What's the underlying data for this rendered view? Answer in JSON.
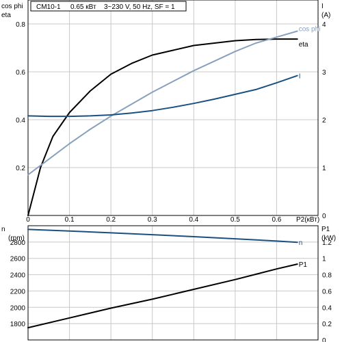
{
  "title_box": {
    "model": "CM10-1",
    "power": "0.65 кВт",
    "supply": "3~230 V, 50 Hz, SF = 1"
  },
  "chart_data": [
    {
      "type": "line",
      "x_label": "P2(кВт)",
      "x_range": [
        0,
        0.7
      ],
      "x_ticks": [
        0,
        0.1,
        0.2,
        0.3,
        0.4,
        0.5,
        0.6
      ],
      "left_axis": {
        "labels": [
          "cos phi",
          "eta"
        ],
        "range": [
          0,
          0.9
        ],
        "ticks": [
          0.2,
          0.4,
          0.6,
          0.8
        ]
      },
      "right_axis": {
        "labels": [
          "I",
          "(A)"
        ],
        "range": [
          0,
          4.5
        ],
        "ticks": [
          0,
          1,
          2,
          3,
          4
        ]
      },
      "grid": true,
      "series": [
        {
          "name": "eta",
          "axis": "left",
          "color": "#000000",
          "points": [
            [
              0,
              0
            ],
            [
              0.03,
              0.2
            ],
            [
              0.06,
              0.33
            ],
            [
              0.1,
              0.43
            ],
            [
              0.15,
              0.52
            ],
            [
              0.2,
              0.59
            ],
            [
              0.25,
              0.635
            ],
            [
              0.3,
              0.67
            ],
            [
              0.35,
              0.69
            ],
            [
              0.4,
              0.71
            ],
            [
              0.45,
              0.72
            ],
            [
              0.5,
              0.73
            ],
            [
              0.55,
              0.735
            ],
            [
              0.6,
              0.737
            ],
            [
              0.65,
              0.737
            ]
          ]
        },
        {
          "name": "cos phi",
          "axis": "left",
          "color": "#87a0bd",
          "points": [
            [
              0,
              0.17
            ],
            [
              0.05,
              0.235
            ],
            [
              0.1,
              0.3
            ],
            [
              0.15,
              0.36
            ],
            [
              0.2,
              0.415
            ],
            [
              0.25,
              0.465
            ],
            [
              0.3,
              0.515
            ],
            [
              0.35,
              0.56
            ],
            [
              0.4,
              0.605
            ],
            [
              0.45,
              0.645
            ],
            [
              0.5,
              0.685
            ],
            [
              0.55,
              0.72
            ],
            [
              0.6,
              0.745
            ],
            [
              0.65,
              0.77
            ]
          ]
        },
        {
          "name": "I",
          "axis": "right",
          "color": "#1a5080",
          "points": [
            [
              0,
              2.08
            ],
            [
              0.05,
              2.07
            ],
            [
              0.1,
              2.07
            ],
            [
              0.15,
              2.08
            ],
            [
              0.2,
              2.1
            ],
            [
              0.25,
              2.14
            ],
            [
              0.3,
              2.19
            ],
            [
              0.35,
              2.26
            ],
            [
              0.4,
              2.34
            ],
            [
              0.45,
              2.43
            ],
            [
              0.5,
              2.53
            ],
            [
              0.55,
              2.63
            ],
            [
              0.6,
              2.77
            ],
            [
              0.65,
              2.92
            ]
          ]
        }
      ]
    },
    {
      "type": "line",
      "x_range": [
        0,
        0.7
      ],
      "grid": true,
      "left_axis": {
        "labels": [
          "n",
          "(rpm)"
        ],
        "range": [
          1600,
          3000
        ],
        "ticks": [
          1800,
          2000,
          2200,
          2400,
          2600,
          2800
        ]
      },
      "right_axis": {
        "labels": [
          "P1",
          "(kW)"
        ],
        "range": [
          0,
          1.4
        ],
        "ticks": [
          0,
          0.2,
          0.4,
          0.6,
          0.8,
          1,
          1.2
        ]
      },
      "series": [
        {
          "name": "n",
          "axis": "left",
          "color": "#1a5080",
          "points": [
            [
              0,
              2955
            ],
            [
              0.1,
              2935
            ],
            [
              0.2,
              2913
            ],
            [
              0.3,
              2890
            ],
            [
              0.4,
              2866
            ],
            [
              0.5,
              2840
            ],
            [
              0.6,
              2812
            ],
            [
              0.65,
              2797
            ]
          ]
        },
        {
          "name": "P1",
          "axis": "right",
          "color": "#000000",
          "points": [
            [
              0,
              0.15
            ],
            [
              0.1,
              0.27
            ],
            [
              0.2,
              0.39
            ],
            [
              0.3,
              0.5
            ],
            [
              0.4,
              0.62
            ],
            [
              0.5,
              0.74
            ],
            [
              0.6,
              0.87
            ],
            [
              0.65,
              0.93
            ]
          ]
        }
      ]
    }
  ]
}
